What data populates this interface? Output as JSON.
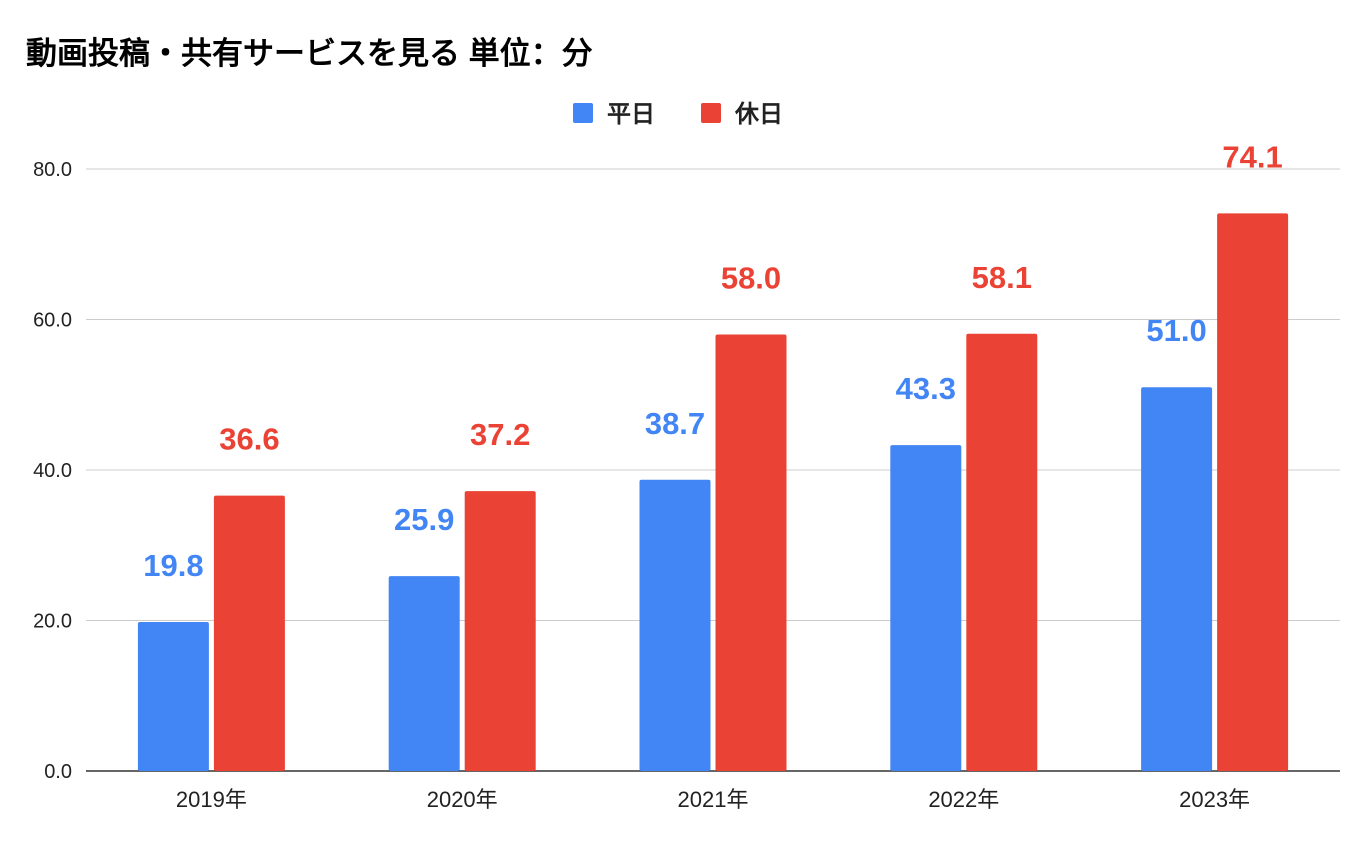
{
  "chart_data": {
    "type": "bar",
    "title": "動画投稿・共有サービスを見る 単位：分",
    "categories": [
      "2019年",
      "2020年",
      "2021年",
      "2022年",
      "2023年"
    ],
    "series": [
      {
        "name": "平日",
        "color": "#4285f4",
        "values": [
          19.8,
          25.9,
          38.7,
          43.3,
          51.0
        ],
        "labels": [
          "19.8",
          "25.9",
          "38.7",
          "43.3",
          "51.0"
        ]
      },
      {
        "name": "休日",
        "color": "#ea4335",
        "values": [
          36.6,
          37.2,
          58.0,
          58.1,
          74.1
        ],
        "labels": [
          "36.6",
          "37.2",
          "58.0",
          "58.1",
          "74.1"
        ]
      }
    ],
    "yticks": [
      0,
      20,
      40,
      60,
      80
    ],
    "ytick_labels": [
      "0.0",
      "20.0",
      "40.0",
      "60.0",
      "80.0"
    ],
    "ylim": [
      0,
      80
    ],
    "xlabel": "",
    "ylabel": "",
    "grid": true,
    "legend_position": "top-center"
  }
}
